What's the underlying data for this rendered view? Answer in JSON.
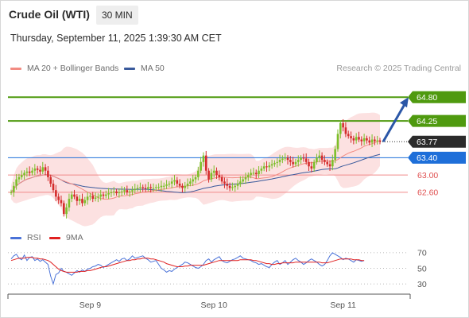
{
  "header": {
    "title": "Crude Oil (WTI)",
    "interval": "30 MIN",
    "datetime": "Thursday, September 11, 2025 1:39:30 AM CET"
  },
  "legend": {
    "items": [
      {
        "label": "MA 20 + Bollinger Bands",
        "color": "#f28b82"
      },
      {
        "label": "MA 50",
        "color": "#3a5a9c"
      }
    ],
    "credit": "Research © 2025 Trading Central"
  },
  "rsi_legend": {
    "items": [
      {
        "label": "RSI",
        "color": "#4a72d8"
      },
      {
        "label": "9MA",
        "color": "#e02020"
      }
    ]
  },
  "chart_data": [
    {
      "type": "candlestick",
      "title": "Crude Oil (WTI)",
      "timeframe": "30 MIN",
      "ylim": [
        61.9,
        65.3
      ],
      "levels": [
        {
          "label": "64.80",
          "value": 64.8,
          "color": "#4f9a0f",
          "tag": "filled"
        },
        {
          "label": "64.25",
          "value": 64.25,
          "color": "#4f9a0f",
          "tag": "filled"
        },
        {
          "label": "63.77",
          "value": 63.77,
          "color": "#2b2b2b",
          "tag": "filled",
          "line": "dotted"
        },
        {
          "label": "63.40",
          "value": 63.4,
          "color": "#1e6fd9",
          "tag": "filled"
        },
        {
          "label": "63.00",
          "value": 63.0,
          "color": "#f08a8a",
          "tag": "text"
        },
        {
          "label": "62.60",
          "value": 62.6,
          "color": "#f08a8a",
          "tag": "text"
        }
      ],
      "price": [
        62.6,
        62.75,
        62.9,
        62.95,
        63.0,
        63.05,
        63.08,
        63.05,
        63.1,
        63.15,
        63.12,
        63.08,
        63.18,
        63.1,
        62.95,
        62.8,
        62.65,
        62.5,
        62.42,
        62.35,
        62.1,
        62.25,
        62.45,
        62.55,
        62.5,
        62.4,
        62.45,
        62.35,
        62.42,
        62.5,
        62.52,
        62.45,
        62.48,
        62.5,
        62.55,
        62.52,
        62.55,
        62.58,
        62.6,
        62.62,
        62.58,
        62.6,
        62.62,
        62.65,
        62.6,
        62.62,
        62.65,
        62.68,
        62.7,
        62.72,
        62.7,
        62.68,
        62.72,
        62.7,
        62.7,
        62.72,
        62.72,
        62.75,
        62.75,
        62.78,
        62.8,
        62.85,
        62.88,
        62.8,
        62.75,
        62.7,
        62.75,
        62.8,
        62.85,
        62.9,
        62.95,
        63.1,
        63.3,
        63.45,
        63.1,
        62.9,
        63.05,
        63.1,
        63.0,
        62.95,
        62.85,
        62.8,
        62.75,
        62.7,
        62.72,
        62.75,
        62.8,
        62.85,
        62.9,
        62.95,
        63.0,
        63.05,
        63.05,
        63.02,
        63.1,
        63.15,
        63.2,
        63.18,
        63.22,
        63.25,
        63.28,
        63.3,
        63.35,
        63.38,
        63.4,
        63.35,
        63.3,
        63.25,
        63.3,
        63.35,
        63.4,
        63.38,
        63.3,
        63.2,
        63.15,
        63.3,
        63.4,
        63.45,
        63.35,
        63.3,
        63.25,
        63.2,
        63.35,
        63.6,
        63.95,
        64.2,
        64.1,
        63.95,
        63.9,
        63.85,
        63.8,
        63.88,
        63.82,
        63.78,
        63.85,
        63.8,
        63.75,
        63.82,
        63.78,
        63.8,
        63.77
      ],
      "x_ticks": [
        {
          "label": "Sep 9",
          "index": 30
        },
        {
          "label": "Sep 10",
          "index": 77
        },
        {
          "label": "Sep 11",
          "index": 126
        }
      ],
      "projection": {
        "from": 63.77,
        "to": 64.8
      },
      "series": [
        {
          "name": "MA 20 + Bollinger Bands"
        },
        {
          "name": "MA 50"
        }
      ]
    },
    {
      "type": "line",
      "ylim": [
        25,
        75
      ],
      "y_ticks": [
        70,
        50,
        30
      ],
      "series": [
        {
          "name": "RSI",
          "values": [
            62,
            66,
            68,
            63,
            61,
            67,
            60,
            64,
            65,
            60,
            62,
            59,
            61,
            58,
            55,
            40,
            30,
            42,
            44,
            50,
            46,
            45,
            43,
            41,
            44,
            47,
            45,
            48,
            46,
            49,
            50,
            52,
            53,
            55,
            54,
            51,
            53,
            55,
            57,
            59,
            61,
            59,
            62,
            63,
            60,
            62,
            66,
            63,
            64,
            65,
            66,
            63,
            61,
            58,
            59,
            60,
            55,
            50,
            48,
            45,
            47,
            46,
            49,
            51,
            53,
            55,
            58,
            57,
            55,
            53,
            51,
            50,
            52,
            55,
            60,
            62,
            58,
            61,
            63,
            65,
            60,
            58,
            57,
            59,
            61,
            62,
            64,
            66,
            63,
            62,
            61,
            60,
            58,
            57,
            55,
            56,
            54,
            52,
            51,
            55,
            58,
            60,
            55,
            57,
            60,
            55,
            58,
            61,
            63,
            60,
            58,
            55,
            57,
            60,
            62,
            60,
            58,
            55,
            53,
            55,
            60,
            66,
            70,
            68,
            66,
            64,
            61,
            63,
            62,
            60,
            58,
            61,
            60,
            59,
            60
          ]
        },
        {
          "name": "9MA",
          "values": [
            60,
            61,
            62,
            63,
            63,
            63,
            64,
            64,
            64,
            63,
            63,
            62,
            62,
            61,
            60,
            58,
            55,
            52,
            49,
            47,
            46,
            45,
            45,
            45,
            45,
            45,
            46,
            46,
            46,
            47,
            47,
            48,
            49,
            50,
            51,
            52,
            52,
            53,
            54,
            55,
            56,
            57,
            58,
            59,
            60,
            60,
            61,
            61,
            62,
            62,
            63,
            63,
            63,
            62,
            62,
            61,
            60,
            59,
            58,
            56,
            55,
            54,
            53,
            52,
            52,
            52,
            53,
            53,
            54,
            54,
            54,
            54,
            54,
            54,
            55,
            56,
            57,
            58,
            59,
            60,
            60,
            60,
            60,
            60,
            60,
            60,
            60,
            61,
            61,
            61,
            61,
            61,
            60,
            60,
            59,
            58,
            57,
            56,
            56,
            55,
            55,
            56,
            56,
            57,
            57,
            57,
            57,
            57,
            58,
            58,
            58,
            58,
            58,
            58,
            58,
            58,
            58,
            58,
            57,
            57,
            57,
            58,
            59,
            60,
            61,
            62,
            62,
            62,
            62,
            62,
            61,
            61,
            61,
            60,
            60
          ]
        }
      ]
    }
  ]
}
